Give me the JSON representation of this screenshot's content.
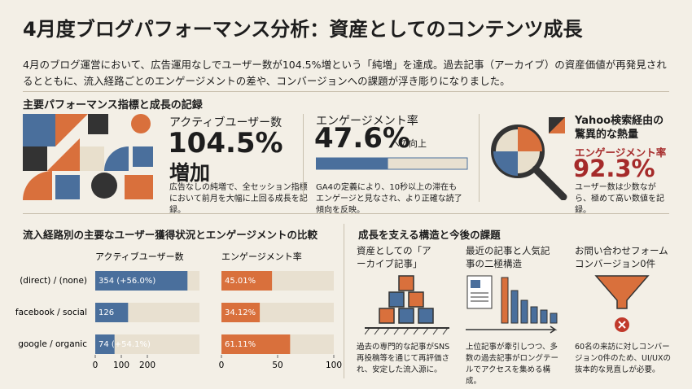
{
  "header": {
    "title": "4月度ブログパフォーマンス分析：資産としてのコンテンツ成長",
    "summary": "4月のブログ運営において、広告運用なしでユーザー数が104.5%増という「純増」を達成。過去記事（アーカイブ）の資産価値が再発見されるとともに、流入経路ごとのエンゲージメントの差や、コンバージョンへの課題が浮き彫りになりました。"
  },
  "kpi_section": {
    "title": "主要パフォーマンス指標と成長の記録",
    "cards": [
      {
        "label": "アクティブユーザー数",
        "value": "104.5%",
        "unit": "増加",
        "note": "広告なしの純増で、全セッション指標において前月を大幅に上回る成長を記録。"
      },
      {
        "label": "エンゲージメント率",
        "value": {
          "value": 47.6,
          "label": "47.6%"
        },
        "unit": "への向上",
        "note": "GA4の定義により、10秒以上の滞在もエンゲージと見なされ、より正確な読了傾向を反映。"
      },
      {
        "label": "Yahoo検索経由の驚異的な熱量",
        "sublabel": "エンゲージメント率",
        "value": "92.3%",
        "note": "ユーザー数は少数ながら、極めて高い数値を記録。"
      }
    ]
  },
  "comparison_title": "流入経路別の主要なユーザー獲得状況とエンゲージメントの比較",
  "chart_data": [
    {
      "type": "bar",
      "horizontal": true,
      "title": "アクティブユーザー数",
      "categories": [
        "(direct) / (none)",
        "facebook / social",
        "google / organic"
      ],
      "values": [
        354,
        126,
        74
      ],
      "value_labels": [
        "354 (+56.0%)",
        "126",
        "74 (+54.1%)"
      ],
      "color": "#4a6f9c",
      "xlim": [
        0,
        400
      ],
      "xticks": [
        0,
        100,
        200
      ]
    },
    {
      "type": "bar",
      "horizontal": true,
      "title": "エンゲージメント率",
      "values": [
        45.01,
        34.12,
        61.11
      ],
      "value_labels": [
        "45.01%",
        "34.12%",
        "61.11%"
      ],
      "color": "#d9703c",
      "xlim": [
        0,
        100
      ],
      "xticks": [
        0,
        50,
        100
      ]
    }
  ],
  "growth_section": {
    "title": "成長を支える構造と今後の課題",
    "items": [
      {
        "title": "資産としての「アーカイブ記事」",
        "text": "過去の専門的な記事がSNS再投稿等を通じて再評価され、安定した流入源に。"
      },
      {
        "title": "最近の記事と人気記事の二極構造",
        "text": "上位記事が牽引しつつ、多数の過去記事がロングテールでアクセスを集める構成。"
      },
      {
        "title": "お問い合わせフォームコンバージョン0件",
        "text": "60名の来訪に対しコンバージョン0件のため、UI/UXの抜本的な見直しが必要。"
      }
    ]
  }
}
